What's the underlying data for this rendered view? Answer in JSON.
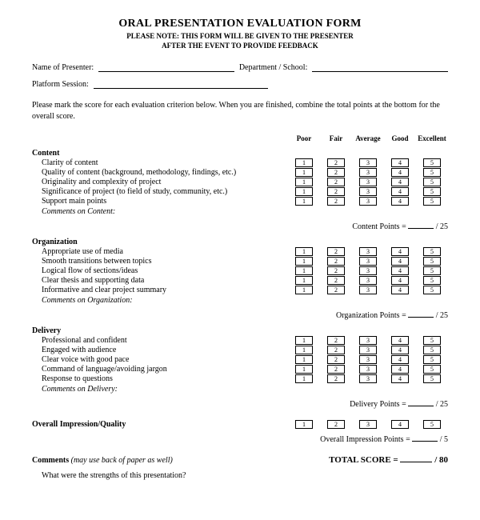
{
  "title": "ORAL PRESENTATION EVALUATION FORM",
  "subtitle_line1": "PLEASE NOTE: THIS FORM WILL BE GIVEN TO THE PRESENTER",
  "subtitle_line2": "AFTER THE EVENT TO PROVIDE FEEDBACK",
  "fields": {
    "name_label": "Name of Presenter:",
    "dept_label": "Department / School:",
    "platform_label": "Platform Session:"
  },
  "instructions": "Please mark the score for each evaluation criterion below. When you are finished, combine the total points at the bottom for the overall score.",
  "rating_headers": [
    "Poor",
    "Fair",
    "Average",
    "Good",
    "Excellent"
  ],
  "rating_values": [
    "1",
    "2",
    "3",
    "4",
    "5"
  ],
  "sections": {
    "content": {
      "title": "Content",
      "criteria": [
        "Clarity of content",
        "Quality of content (background, methodology, findings, etc.)",
        "Originality and complexity of project",
        "Significance of project (to field of study, community, etc.)",
        "Support main points"
      ],
      "comments_label": "Comments on Content:",
      "points_label": "Content Points =",
      "points_max": "/ 25"
    },
    "organization": {
      "title": "Organization",
      "criteria": [
        "Appropriate use of media",
        "Smooth transitions between topics",
        "Logical flow of sections/ideas",
        "Clear thesis and supporting data",
        "Informative and clear project summary"
      ],
      "comments_label": "Comments on Organization:",
      "points_label": "Organization Points =",
      "points_max": "/ 25"
    },
    "delivery": {
      "title": "Delivery",
      "criteria": [
        "Professional and confident",
        "Engaged with audience",
        "Clear voice with good pace",
        "Command of language/avoiding jargon",
        "Response to questions"
      ],
      "comments_label": "Comments on Delivery:",
      "points_label": "Delivery Points =",
      "points_max": "/ 25"
    },
    "overall": {
      "title": "Overall Impression/Quality",
      "points_label": "Overall Impression Points =",
      "points_max": "/ 5"
    }
  },
  "comments_section": {
    "title": "Comments",
    "hint": "(may use back of paper as well)",
    "question1": "What were the strengths of this presentation?"
  },
  "total": {
    "label": "TOTAL SCORE =",
    "max": "/ 80"
  }
}
